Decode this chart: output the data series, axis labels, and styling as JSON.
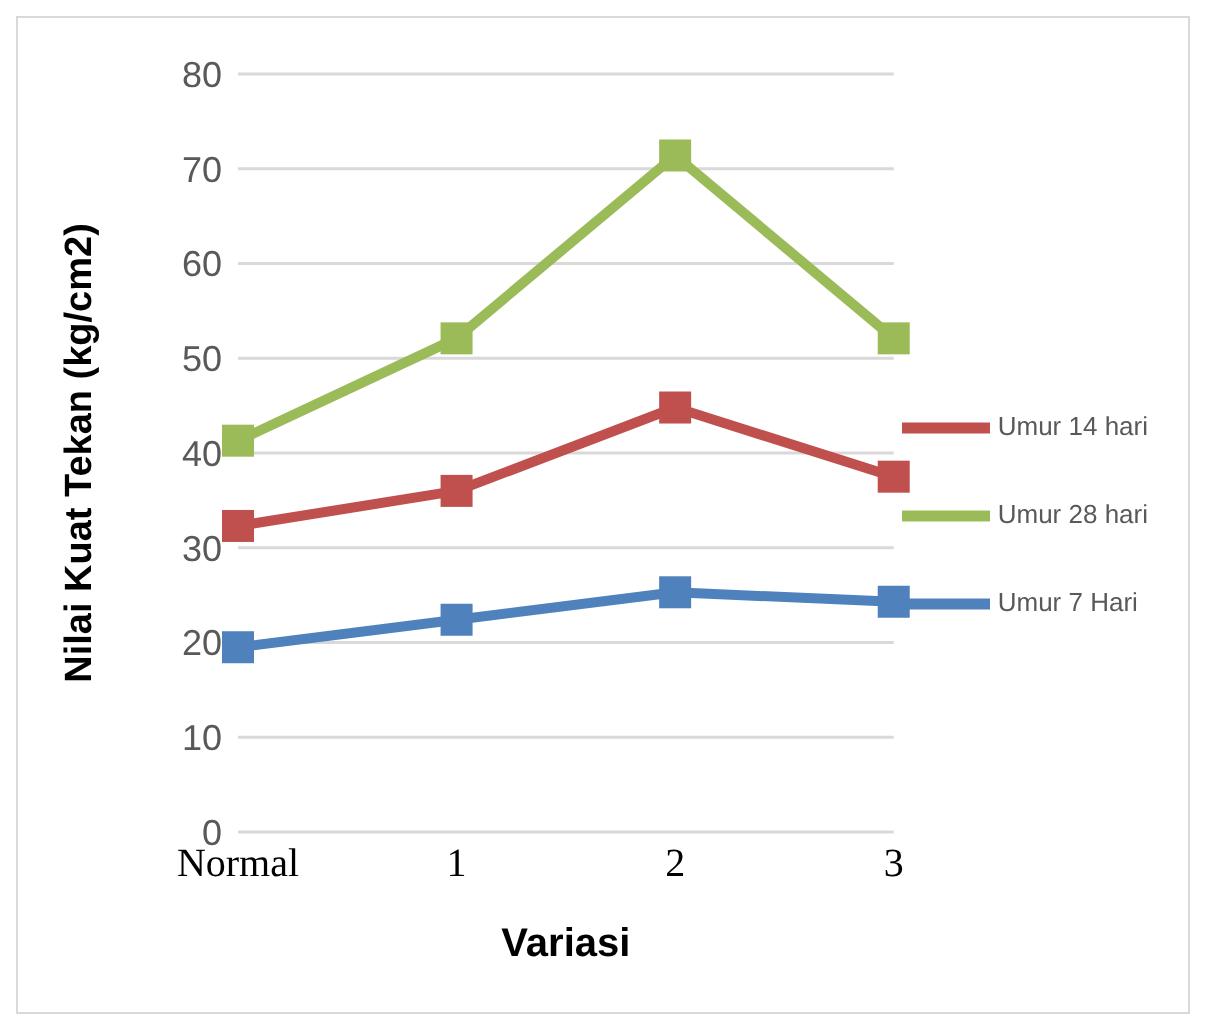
{
  "chart_data": {
    "type": "line",
    "xlabel": "Variasi",
    "ylabel": "Nilai Kuat Tekan (kg/cm2)",
    "categories": [
      "Normal",
      "1",
      "2",
      "3"
    ],
    "series": [
      {
        "name": "Umur 7 Hari",
        "color": "#4f81bd",
        "values": [
          19.5,
          22.4,
          25.3,
          24.3
        ]
      },
      {
        "name": "Umur 14 hari",
        "color": "#c0504d",
        "values": [
          32.3,
          36.0,
          44.8,
          37.5
        ]
      },
      {
        "name": "Umur 28 hari",
        "color": "#9bbb59",
        "values": [
          41.3,
          52.1,
          71.4,
          52.1
        ]
      }
    ],
    "ylim": [
      0,
      80
    ],
    "yticks": [
      0,
      10,
      20,
      30,
      40,
      50,
      60,
      70,
      80
    ],
    "grid": "y",
    "legend": "right",
    "marker": "square",
    "line_style": "solid"
  }
}
